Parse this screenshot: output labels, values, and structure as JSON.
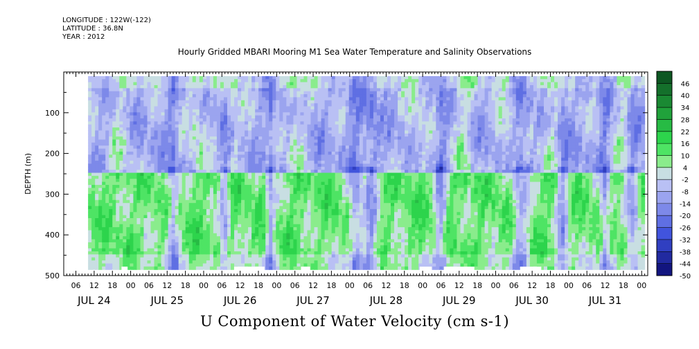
{
  "header": {
    "longitude": "LONGITUDE : 122W(-122)",
    "latitude": "LATITUDE : 36.8N",
    "year": "YEAR : 2012"
  },
  "chart_data": {
    "type": "heatmap",
    "title": "Hourly Gridded MBARI Mooring M1 Sea Water Temperature and Salinity Observations",
    "xlabel": "U Component of Water Velocity (cm s-1)",
    "ylabel": "DEPTH (m)",
    "y_ticks": [
      "100",
      "200",
      "300",
      "400",
      "500"
    ],
    "y_tick_values": [
      100,
      200,
      300,
      400,
      500
    ],
    "ylim": [
      500,
      0
    ],
    "x_hour_labels": [
      "06",
      "12",
      "18",
      "00",
      "06",
      "12",
      "18",
      "00",
      "06",
      "12",
      "18",
      "00",
      "06",
      "12",
      "18",
      "00",
      "06",
      "12",
      "18",
      "00",
      "06",
      "12",
      "18",
      "00",
      "06",
      "12",
      "18",
      "00",
      "06",
      "12",
      "18",
      "00"
    ],
    "x_hour_values": [
      6,
      12,
      18,
      24,
      30,
      36,
      42,
      48,
      54,
      60,
      66,
      72,
      78,
      84,
      90,
      96,
      102,
      108,
      114,
      120,
      126,
      132,
      138,
      144,
      150,
      156,
      162,
      168,
      174,
      180,
      186,
      192
    ],
    "x_day_labels": [
      "JUL 24",
      "JUL 25",
      "JUL 26",
      "JUL 27",
      "JUL 28",
      "JUL 29",
      "JUL 30",
      "JUL 31"
    ],
    "x_day_values": [
      12,
      36,
      60,
      84,
      108,
      132,
      156,
      180
    ],
    "xlim": [
      2,
      194
    ],
    "data_time_range": [
      10,
      193
    ],
    "data_depth_range": [
      10,
      485
    ],
    "colorbar": {
      "ticks": [
        "46",
        "40",
        "34",
        "28",
        "22",
        "16",
        "10",
        "4",
        "-2",
        "-8",
        "-14",
        "-20",
        "-26",
        "-32",
        "-38",
        "-44",
        "-50"
      ],
      "levels": [
        46,
        40,
        34,
        28,
        22,
        16,
        10,
        4,
        -2,
        -8,
        -14,
        -20,
        -26,
        -32,
        -38,
        -44,
        -50
      ],
      "range": [
        -50,
        52
      ]
    },
    "field_description": "U component of water velocity varies mostly between -20 and +20 cm/s; negative (blue/purple) dominates upper 250 m, positive (green) dominates 260-450 m",
    "colors": {
      "neg_deep": "#0a0a6e",
      "neg_mid": "#3c50dc",
      "neg_light": "#a0a8f0",
      "zero": "#d2d8f8",
      "pos_light": "#a8f0a0",
      "pos_mid": "#30e050",
      "pos_deep": "#0a4a1e",
      "missing": "#ffffff"
    },
    "missing_segments_note": "white gaps in the bottom-most row near JUL 24 21h, JUL 26 10-20h, JUL 27 08-11h, JUL 28 23-JUL 29 03h, JUL 29 07-17h, JUL 30 08-15h"
  }
}
